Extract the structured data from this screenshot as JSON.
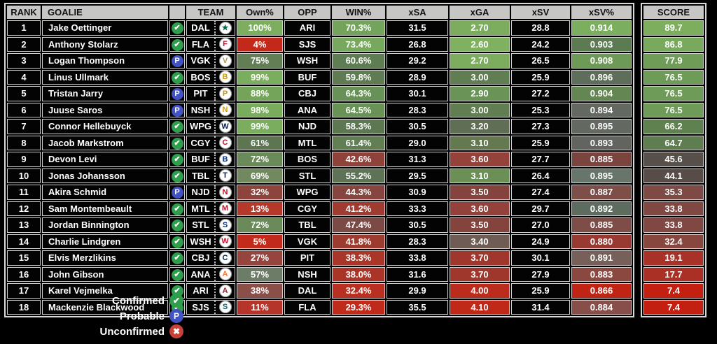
{
  "chart_data": {
    "type": "table",
    "columns": [
      "RANK",
      "GOALIE",
      "",
      "TEAM",
      "Own%",
      "OPP",
      "WIN%",
      "xSA",
      "xGA",
      "xSV",
      "xSV%"
    ],
    "score_column": "SCORE",
    "rows": [
      {
        "rank": "1",
        "goalie": "Jake Oettinger",
        "status": "confirmed",
        "team": "DAL",
        "own": "100%",
        "own_bg": "#7dae5f",
        "opp": "ARI",
        "win": "70.3%",
        "win_bg": "#74a45c",
        "xsa": "31.5",
        "xga": "2.70",
        "xga_bg": "#7cad5f",
        "xsv": "28.8",
        "xsvp": "0.914",
        "xsvp_bg": "#7bae5e",
        "score": "89.7",
        "score_bg": "#7cae5e"
      },
      {
        "rank": "2",
        "goalie": "Anthony Stolarz",
        "status": "confirmed",
        "team": "FLA",
        "own": "4%",
        "own_bg": "#c2291a",
        "opp": "SJS",
        "win": "73.4%",
        "win_bg": "#78a85d",
        "xsa": "26.8",
        "xga": "2.60",
        "xga_bg": "#80b161",
        "xsv": "24.2",
        "xsvp": "0.903",
        "xsvp_bg": "#5c7b52",
        "score": "86.8",
        "score_bg": "#78a95c"
      },
      {
        "rank": "3",
        "goalie": "Logan Thompson",
        "status": "probable",
        "team": "VGK",
        "own": "75%",
        "own_bg": "#637e54",
        "opp": "WSH",
        "win": "60.6%",
        "win_bg": "#5f7d52",
        "xsa": "29.2",
        "xga": "2.70",
        "xga_bg": "#7cad5f",
        "xsv": "26.5",
        "xsvp": "0.908",
        "xsvp_bg": "#6e9a58",
        "score": "77.9",
        "score_bg": "#6f9d58"
      },
      {
        "rank": "4",
        "goalie": "Linus Ullmark",
        "status": "confirmed",
        "team": "BOS",
        "own": "99%",
        "own_bg": "#7bad5e",
        "opp": "BUF",
        "win": "59.8%",
        "win_bg": "#5e7b52",
        "xsa": "28.9",
        "xga": "3.00",
        "xga_bg": "#617e53",
        "xsv": "25.9",
        "xsvp": "0.896",
        "xsvp_bg": "#5f6e5b",
        "score": "76.5",
        "score_bg": "#6e9b58"
      },
      {
        "rank": "5",
        "goalie": "Tristan Jarry",
        "status": "probable",
        "team": "PIT",
        "own": "88%",
        "own_bg": "#74a35a",
        "opp": "CBJ",
        "win": "64.3%",
        "win_bg": "#679156",
        "xsa": "30.1",
        "xga": "2.90",
        "xga_bg": "#6a9457",
        "xsv": "27.2",
        "xsvp": "0.904",
        "xsvp_bg": "#648653",
        "score": "76.5",
        "score_bg": "#6e9b58"
      },
      {
        "rank": "6",
        "goalie": "Juuse Saros",
        "status": "probable",
        "team": "NSH",
        "own": "98%",
        "own_bg": "#7aac5e",
        "opp": "ANA",
        "win": "64.5%",
        "win_bg": "#689256",
        "xsa": "28.3",
        "xga": "3.00",
        "xga_bg": "#617e53",
        "xsv": "25.3",
        "xsvp": "0.894",
        "xsvp_bg": "#636861",
        "score": "76.5",
        "score_bg": "#6e9b58"
      },
      {
        "rank": "7",
        "goalie": "Connor Hellebuyck",
        "status": "confirmed",
        "team": "WPG",
        "own": "99%",
        "own_bg": "#7bad5e",
        "opp": "NJD",
        "win": "58.3%",
        "win_bg": "#5c7751",
        "xsa": "30.5",
        "xga": "3.20",
        "xga_bg": "#5f6e54",
        "xsv": "27.3",
        "xsvp": "0.895",
        "xsvp_bg": "#636861",
        "score": "66.2",
        "score_bg": "#5f814f"
      },
      {
        "rank": "8",
        "goalie": "Jacob Markstrom",
        "status": "confirmed",
        "team": "CGY",
        "own": "61%",
        "own_bg": "#5d7550",
        "opp": "MTL",
        "win": "61.4%",
        "win_bg": "#617f53",
        "xsa": "29.0",
        "xga": "3.10",
        "xga_bg": "#64794f",
        "xsv": "25.9",
        "xsvp": "0.893",
        "xsvp_bg": "#62655f",
        "score": "64.7",
        "score_bg": "#5e7e4f"
      },
      {
        "rank": "9",
        "goalie": "Devon Levi",
        "status": "confirmed",
        "team": "BUF",
        "own": "72%",
        "own_bg": "#6a8a59",
        "opp": "BOS",
        "win": "42.6%",
        "win_bg": "#8f423a",
        "xsa": "31.3",
        "xga": "3.60",
        "xga_bg": "#94423a",
        "xsv": "27.7",
        "xsvp": "0.885",
        "xsvp_bg": "#7a443f",
        "score": "45.6",
        "score_bg": "#564f4a"
      },
      {
        "rank": "10",
        "goalie": "Jonas Johansson",
        "status": "confirmed",
        "team": "TBL",
        "own": "69%",
        "own_bg": "#72885f",
        "opp": "STL",
        "win": "55.2%",
        "win_bg": "#5e7356",
        "xsa": "29.5",
        "xga": "3.10",
        "xga_bg": "#6c8f55",
        "xsv": "26.4",
        "xsvp": "0.895",
        "xsvp_bg": "#68756a",
        "score": "44.1",
        "score_bg": "#584c48"
      },
      {
        "rank": "11",
        "goalie": "Akira Schmid",
        "status": "probable",
        "team": "NJD",
        "own": "32%",
        "own_bg": "#8d443c",
        "opp": "WPG",
        "win": "44.3%",
        "win_bg": "#86463f",
        "xsa": "30.9",
        "xga": "3.50",
        "xga_bg": "#84443d",
        "xsv": "27.4",
        "xsvp": "0.887",
        "xsvp_bg": "#7e4e49",
        "score": "35.3",
        "score_bg": "#7d4a45"
      },
      {
        "rank": "12",
        "goalie": "Sam Montembeault",
        "status": "confirmed",
        "team": "MTL",
        "own": "13%",
        "own_bg": "#b5382b",
        "opp": "CGY",
        "win": "41.2%",
        "win_bg": "#9f3b30",
        "xsa": "33.3",
        "xga": "3.60",
        "xga_bg": "#93413a",
        "xsv": "29.7",
        "xsvp": "0.892",
        "xsvp_bg": "#5e6b5f",
        "score": "33.8",
        "score_bg": "#814843"
      },
      {
        "rank": "13",
        "goalie": "Jordan Binnington",
        "status": "confirmed",
        "team": "STL",
        "own": "72%",
        "own_bg": "#6a8a59",
        "opp": "TBL",
        "win": "47.4%",
        "win_bg": "#7b4a44",
        "xsa": "30.5",
        "xga": "3.50",
        "xga_bg": "#84443d",
        "xsv": "27.0",
        "xsvp": "0.885",
        "xsvp_bg": "#7f4d48",
        "score": "33.8",
        "score_bg": "#814843"
      },
      {
        "rank": "14",
        "goalie": "Charlie Lindgren",
        "status": "confirmed",
        "team": "WSH",
        "own": "5%",
        "own_bg": "#c22a1b",
        "opp": "VGK",
        "win": "41.8%",
        "win_bg": "#9c3c31",
        "xsa": "28.3",
        "xga": "3.40",
        "xga_bg": "#6e5c55",
        "xsv": "24.9",
        "xsvp": "0.880",
        "xsvp_bg": "#993a32",
        "score": "32.4",
        "score_bg": "#87473f"
      },
      {
        "rank": "15",
        "goalie": "Elvis Merzlikins",
        "status": "confirmed",
        "team": "CBJ",
        "own": "27%",
        "own_bg": "#96453e",
        "opp": "PIT",
        "win": "38.3%",
        "win_bg": "#aa3529",
        "xsa": "33.8",
        "xga": "3.70",
        "xga_bg": "#a0372c",
        "xsv": "30.1",
        "xsvp": "0.891",
        "xsvp_bg": "#776059",
        "score": "19.1",
        "score_bg": "#a83228"
      },
      {
        "rank": "16",
        "goalie": "John Gibson",
        "status": "confirmed",
        "team": "ANA",
        "own": "57%",
        "own_bg": "#6d7c67",
        "opp": "NSH",
        "win": "38.0%",
        "win_bg": "#ab3428",
        "xsa": "31.6",
        "xga": "3.70",
        "xga_bg": "#a0372c",
        "xsv": "27.9",
        "xsvp": "0.883",
        "xsvp_bg": "#8a4841",
        "score": "17.7",
        "score_bg": "#aa2f25"
      },
      {
        "rank": "17",
        "goalie": "Karel Vejmelka",
        "status": "confirmed",
        "team": "ARI",
        "own": "38%",
        "own_bg": "#8a4f48",
        "opp": "DAL",
        "win": "32.4%",
        "win_bg": "#b92f21",
        "xsa": "29.9",
        "xga": "4.00",
        "xga_bg": "#bb2c1d",
        "xsv": "25.9",
        "xsvp": "0.866",
        "xsvp_bg": "#c02415",
        "score": "7.4",
        "score_bg": "#c32012"
      },
      {
        "rank": "18",
        "goalie": "Mackenzie Blackwood",
        "status": "confirmed",
        "team": "SJS",
        "own": "11%",
        "own_bg": "#b5352a",
        "opp": "FLA",
        "win": "29.3%",
        "win_bg": "#c02a1b",
        "xsa": "35.5",
        "xga": "4.10",
        "xga_bg": "#c02818",
        "xsv": "31.4",
        "xsvp": "0.884",
        "xsvp_bg": "#884f4a",
        "score": "7.4",
        "score_bg": "#c32012"
      }
    ]
  },
  "statuses": {
    "confirmed": {
      "glyph": "✔",
      "color": "#2e9e4c"
    },
    "probable": {
      "glyph": "P",
      "color": "#4152c4"
    },
    "unconfirmed": {
      "glyph": "✖",
      "color": "#c94237"
    }
  },
  "teams": {
    "DAL": {
      "glyph": "★",
      "color": "#006847"
    },
    "FLA": {
      "glyph": "F",
      "color": "#C8102E"
    },
    "VGK": {
      "glyph": "V",
      "color": "#B4975A"
    },
    "BOS": {
      "glyph": "B",
      "color": "#d89b00"
    },
    "PIT": {
      "glyph": "P",
      "color": "#c79409"
    },
    "NSH": {
      "glyph": "N",
      "color": "#d89b00"
    },
    "WPG": {
      "glyph": "W",
      "color": "#041E42"
    },
    "CGY": {
      "glyph": "C",
      "color": "#C8102E"
    },
    "BUF": {
      "glyph": "B",
      "color": "#003087"
    },
    "TBL": {
      "glyph": "T",
      "color": "#00205B"
    },
    "NJD": {
      "glyph": "N",
      "color": "#CE1126"
    },
    "MTL": {
      "glyph": "M",
      "color": "#AF1E2D"
    },
    "STL": {
      "glyph": "S",
      "color": "#002F87"
    },
    "WSH": {
      "glyph": "W",
      "color": "#C8102E"
    },
    "CBJ": {
      "glyph": "C",
      "color": "#002654"
    },
    "ANA": {
      "glyph": "A",
      "color": "#F47A38"
    },
    "ARI": {
      "glyph": "A",
      "color": "#8C2633"
    },
    "SJS": {
      "glyph": "S",
      "color": "#006D75"
    }
  },
  "legend": {
    "items": [
      {
        "label": "Confirmed",
        "status": "confirmed"
      },
      {
        "label": "Probable",
        "status": "probable"
      },
      {
        "label": "Unconfirmed",
        "status": "unconfirmed"
      }
    ]
  }
}
